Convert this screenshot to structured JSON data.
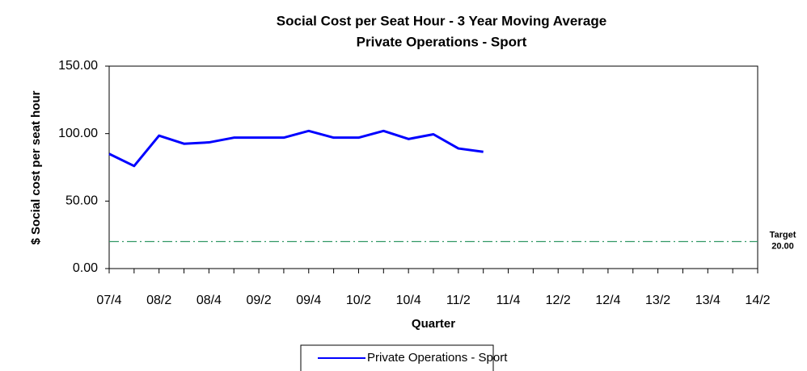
{
  "chart_data": {
    "type": "line",
    "title": "Social Cost per Seat Hour - 3 Year Moving Average",
    "subtitle": "Private Operations - Sport",
    "x_label": "Quarter",
    "y_label": "$ Social cost per seat hour",
    "categories": [
      "07/4",
      null,
      "08/2",
      null,
      "08/4",
      null,
      "09/2",
      null,
      "09/4",
      null,
      "10/2",
      null,
      "10/4",
      null,
      "11/2",
      null,
      "11/4",
      null,
      "12/2",
      null,
      "12/4",
      null,
      "13/2",
      null,
      "13/4",
      null,
      "14/2"
    ],
    "series": [
      {
        "name": "Private Operations - Sport",
        "color": "#0000ff",
        "values": [
          85,
          76,
          98.5,
          92.5,
          93.5,
          97,
          97,
          97,
          102,
          97,
          97,
          102,
          96,
          99.5,
          89,
          86.5,
          null,
          null,
          null,
          null,
          null,
          null,
          null,
          null,
          null,
          null,
          null
        ]
      }
    ],
    "reference_line": {
      "label": "Target",
      "value": 20,
      "value_label": "20.00",
      "color": "#339966"
    },
    "ylim": [
      0,
      150
    ],
    "yticks": [
      {
        "value": 0,
        "label": "0.00"
      },
      {
        "value": 50,
        "label": "50.00"
      },
      {
        "value": 100,
        "label": "100.00"
      },
      {
        "value": 150,
        "label": "150.00"
      }
    ],
    "grid": false,
    "legend": "bottom"
  }
}
